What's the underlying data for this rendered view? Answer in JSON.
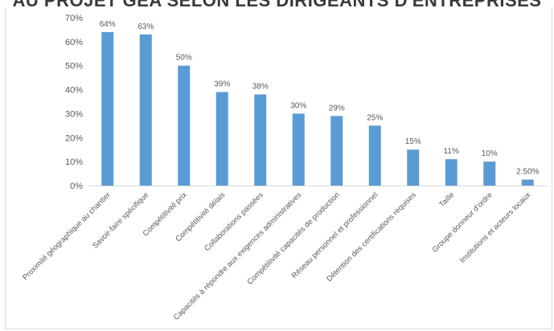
{
  "page": {
    "title": "AU PROJET GEA SELON LES DIRIGEANTS D'ENTREPRISES"
  },
  "colors": {
    "bar": "#5b9bd5",
    "axis_text": "#595959",
    "grid": "#d9d9d9"
  },
  "chart_data": {
    "type": "bar",
    "categories": [
      "Proximité géographique au chantier",
      "Savoir-faire spécifique",
      "Compétitivité prix",
      "Compétitivité délais",
      "Collaborations passées",
      "Capacités à répondre aux exigences administratives",
      "Compétitivité capacités de production",
      "Réseau personnel et professionnel",
      "Détention des certifications requises",
      "Taille",
      "Groupe donneur d'ordre",
      "Institutions et acteurs locaux"
    ],
    "values": [
      64,
      63,
      50,
      39,
      38,
      30,
      29,
      25,
      15,
      11,
      10,
      2.5
    ],
    "data_labels": [
      "64%",
      "63%",
      "50%",
      "39%",
      "38%",
      "30%",
      "29%",
      "25%",
      "15%",
      "11%",
      "10%",
      "2.50%"
    ],
    "y_ticks": [
      "0%",
      "10%",
      "20%",
      "30%",
      "40%",
      "50%",
      "60%",
      "70%"
    ],
    "ylim": [
      0,
      70
    ],
    "grid": false
  }
}
